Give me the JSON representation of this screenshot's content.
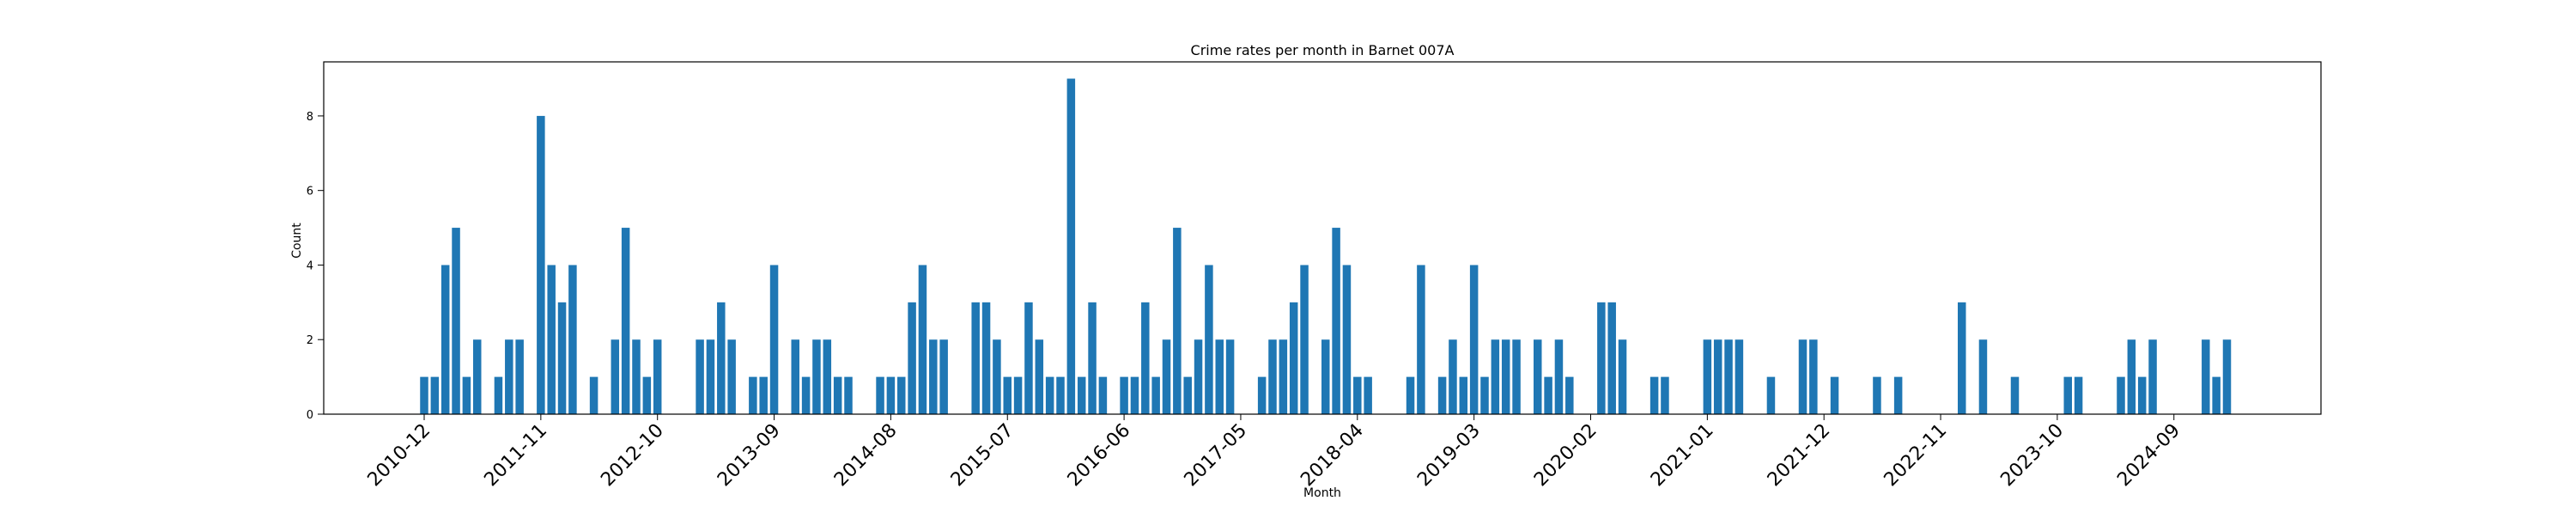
{
  "chart_data": {
    "type": "bar",
    "title": "Crime rates per month in Barnet 007A",
    "xlabel": "Month",
    "ylabel": "Count",
    "ylim": [
      0,
      9.45
    ],
    "yticks": [
      0,
      2,
      4,
      6,
      8
    ],
    "xtick_labels": [
      "2010-12",
      "2011-11",
      "2012-10",
      "2013-09",
      "2014-08",
      "2015-07",
      "2016-06",
      "2017-05",
      "2018-04",
      "2019-03",
      "2020-02",
      "2021-01",
      "2021-12",
      "2022-11",
      "2023-10",
      "2024-09"
    ],
    "bar_color": "#1f77b4",
    "grid": false,
    "legend": "none",
    "bars": [
      {
        "month": "2010-12",
        "value": 1
      },
      {
        "month": "2011-01",
        "value": 1
      },
      {
        "month": "2011-02",
        "value": 4
      },
      {
        "month": "2011-03",
        "value": 5
      },
      {
        "month": "2011-04",
        "value": 1
      },
      {
        "month": "2011-05",
        "value": 2
      },
      {
        "month": "2011-07",
        "value": 1
      },
      {
        "month": "2011-08",
        "value": 2
      },
      {
        "month": "2011-09",
        "value": 2
      },
      {
        "month": "2011-11",
        "value": 8
      },
      {
        "month": "2011-12",
        "value": 4
      },
      {
        "month": "2012-01",
        "value": 3
      },
      {
        "month": "2012-02",
        "value": 4
      },
      {
        "month": "2012-04",
        "value": 1
      },
      {
        "month": "2012-06",
        "value": 2
      },
      {
        "month": "2012-07",
        "value": 5
      },
      {
        "month": "2012-08",
        "value": 2
      },
      {
        "month": "2012-09",
        "value": 1
      },
      {
        "month": "2012-10",
        "value": 2
      },
      {
        "month": "2013-02",
        "value": 2
      },
      {
        "month": "2013-03",
        "value": 2
      },
      {
        "month": "2013-04",
        "value": 3
      },
      {
        "month": "2013-05",
        "value": 2
      },
      {
        "month": "2013-07",
        "value": 1
      },
      {
        "month": "2013-08",
        "value": 1
      },
      {
        "month": "2013-09",
        "value": 4
      },
      {
        "month": "2013-11",
        "value": 2
      },
      {
        "month": "2013-12",
        "value": 1
      },
      {
        "month": "2014-01",
        "value": 2
      },
      {
        "month": "2014-02",
        "value": 2
      },
      {
        "month": "2014-03",
        "value": 1
      },
      {
        "month": "2014-04",
        "value": 1
      },
      {
        "month": "2014-07",
        "value": 1
      },
      {
        "month": "2014-08",
        "value": 1
      },
      {
        "month": "2014-09",
        "value": 1
      },
      {
        "month": "2014-10",
        "value": 3
      },
      {
        "month": "2014-11",
        "value": 4
      },
      {
        "month": "2014-12",
        "value": 2
      },
      {
        "month": "2015-01",
        "value": 2
      },
      {
        "month": "2015-04",
        "value": 3
      },
      {
        "month": "2015-05",
        "value": 3
      },
      {
        "month": "2015-06",
        "value": 2
      },
      {
        "month": "2015-07",
        "value": 1
      },
      {
        "month": "2015-08",
        "value": 1
      },
      {
        "month": "2015-09",
        "value": 3
      },
      {
        "month": "2015-10",
        "value": 2
      },
      {
        "month": "2015-11",
        "value": 1
      },
      {
        "month": "2015-12",
        "value": 1
      },
      {
        "month": "2016-01",
        "value": 9
      },
      {
        "month": "2016-02",
        "value": 1
      },
      {
        "month": "2016-03",
        "value": 3
      },
      {
        "month": "2016-04",
        "value": 1
      },
      {
        "month": "2016-06",
        "value": 1
      },
      {
        "month": "2016-07",
        "value": 1
      },
      {
        "month": "2016-08",
        "value": 3
      },
      {
        "month": "2016-09",
        "value": 1
      },
      {
        "month": "2016-10",
        "value": 2
      },
      {
        "month": "2016-11",
        "value": 5
      },
      {
        "month": "2016-12",
        "value": 1
      },
      {
        "month": "2017-01",
        "value": 2
      },
      {
        "month": "2017-02",
        "value": 4
      },
      {
        "month": "2017-03",
        "value": 2
      },
      {
        "month": "2017-04",
        "value": 2
      },
      {
        "month": "2017-07",
        "value": 1
      },
      {
        "month": "2017-08",
        "value": 2
      },
      {
        "month": "2017-09",
        "value": 2
      },
      {
        "month": "2017-10",
        "value": 3
      },
      {
        "month": "2017-11",
        "value": 4
      },
      {
        "month": "2018-01",
        "value": 2
      },
      {
        "month": "2018-02",
        "value": 5
      },
      {
        "month": "2018-03",
        "value": 4
      },
      {
        "month": "2018-04",
        "value": 1
      },
      {
        "month": "2018-05",
        "value": 1
      },
      {
        "month": "2018-09",
        "value": 1
      },
      {
        "month": "2018-10",
        "value": 4
      },
      {
        "month": "2018-12",
        "value": 1
      },
      {
        "month": "2019-01",
        "value": 2
      },
      {
        "month": "2019-02",
        "value": 1
      },
      {
        "month": "2019-03",
        "value": 4
      },
      {
        "month": "2019-04",
        "value": 1
      },
      {
        "month": "2019-05",
        "value": 2
      },
      {
        "month": "2019-06",
        "value": 2
      },
      {
        "month": "2019-07",
        "value": 2
      },
      {
        "month": "2019-09",
        "value": 2
      },
      {
        "month": "2019-10",
        "value": 1
      },
      {
        "month": "2019-11",
        "value": 2
      },
      {
        "month": "2019-12",
        "value": 1
      },
      {
        "month": "2020-03",
        "value": 3
      },
      {
        "month": "2020-04",
        "value": 3
      },
      {
        "month": "2020-05",
        "value": 2
      },
      {
        "month": "2020-08",
        "value": 1
      },
      {
        "month": "2020-09",
        "value": 1
      },
      {
        "month": "2021-01",
        "value": 2
      },
      {
        "month": "2021-02",
        "value": 2
      },
      {
        "month": "2021-03",
        "value": 2
      },
      {
        "month": "2021-04",
        "value": 2
      },
      {
        "month": "2021-07",
        "value": 1
      },
      {
        "month": "2021-10",
        "value": 2
      },
      {
        "month": "2021-11",
        "value": 2
      },
      {
        "month": "2022-01",
        "value": 1
      },
      {
        "month": "2022-05",
        "value": 1
      },
      {
        "month": "2022-07",
        "value": 1
      },
      {
        "month": "2023-01",
        "value": 3
      },
      {
        "month": "2023-03",
        "value": 2
      },
      {
        "month": "2023-06",
        "value": 1
      },
      {
        "month": "2023-11",
        "value": 1
      },
      {
        "month": "2023-12",
        "value": 1
      },
      {
        "month": "2024-04",
        "value": 1
      },
      {
        "month": "2024-05",
        "value": 2
      },
      {
        "month": "2024-06",
        "value": 1
      },
      {
        "month": "2024-07",
        "value": 2
      },
      {
        "month": "2024-12",
        "value": 2
      },
      {
        "month": "2025-01",
        "value": 1
      },
      {
        "month": "2025-02",
        "value": 2
      }
    ]
  }
}
